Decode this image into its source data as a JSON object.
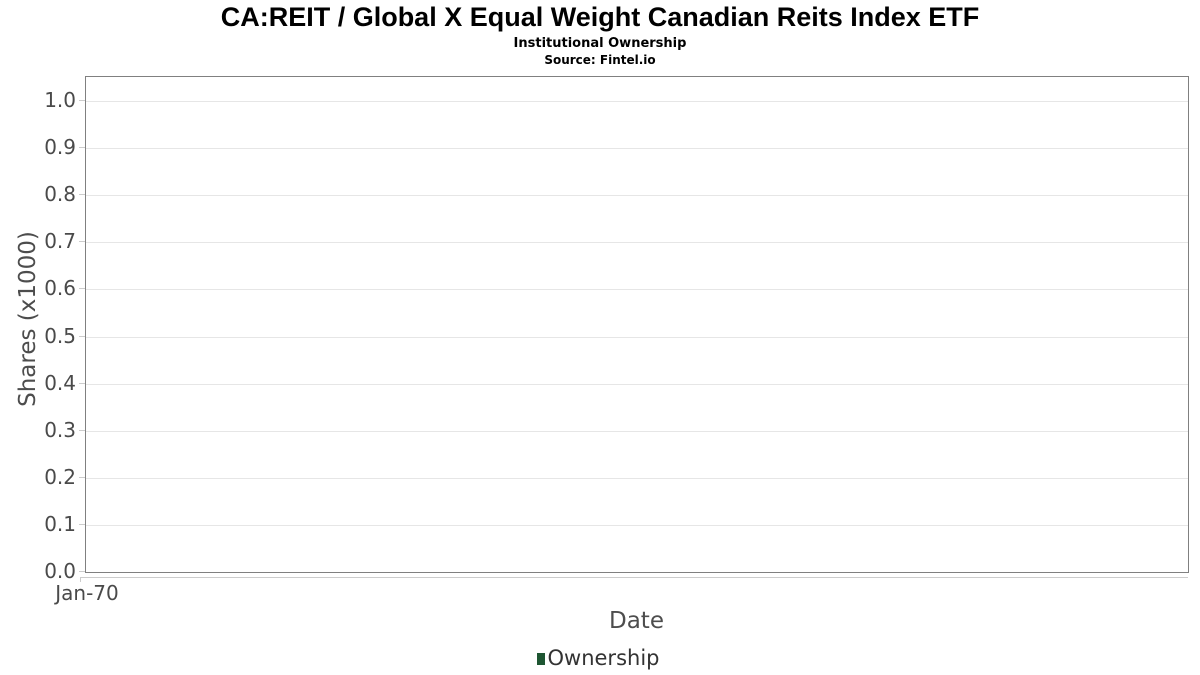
{
  "header": {
    "title": "CA:REIT / Global X Equal Weight Canadian Reits Index ETF",
    "subtitle": "Institutional Ownership",
    "source": "Source: Fintel.io"
  },
  "chart_data": {
    "type": "line",
    "title": "CA:REIT / Global X Equal Weight Canadian Reits Index ETF",
    "subtitle": "Institutional Ownership",
    "source": "Source: Fintel.io",
    "xlabel": "Date",
    "ylabel": "Shares (x1000)",
    "x_tick_labels": [
      "Jan-70"
    ],
    "y_tick_labels": [
      "0.0",
      "0.1",
      "0.2",
      "0.3",
      "0.4",
      "0.5",
      "0.6",
      "0.7",
      "0.8",
      "0.9",
      "1.0"
    ],
    "ylim": [
      0,
      1.05
    ],
    "grid": "horizontal-only",
    "legend_position": "bottom-center",
    "series": [
      {
        "name": "Ownership",
        "x": [],
        "values": [],
        "note": "empty chart - no data points plotted"
      }
    ]
  },
  "colors": {
    "plot_border": "#808080",
    "gridline": "#e6e6e6",
    "axis_line": "#cccccc",
    "tick_label": "#4a4a4a",
    "axis_title": "#4d4d4d",
    "legend_text": "#333333",
    "legend_marker": "#1e5632",
    "title_text": "#000000",
    "background": "#ffffff"
  },
  "legend": {
    "items": [
      {
        "label": "Ownership",
        "marker_color": "#1e5632",
        "marker_shape": "square"
      }
    ]
  }
}
